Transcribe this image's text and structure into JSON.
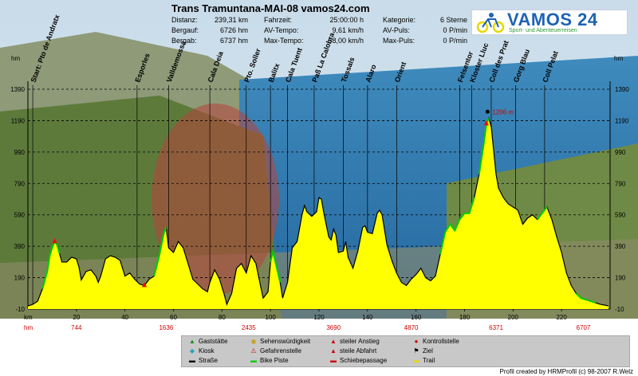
{
  "header": {
    "title": "Trans Tramuntana-MAI-08 vamos24.com",
    "stats": [
      {
        "label": "Distanz:",
        "value": "239,31 km"
      },
      {
        "label": "Bergauf:",
        "value": "6726 hm"
      },
      {
        "label": "Bergab:",
        "value": "6737 hm"
      },
      {
        "label": "Fahrzeit:",
        "value": "25:00:00 h"
      },
      {
        "label": "AV-Tempo:",
        "value": "9,61 km/h"
      },
      {
        "label": "Max-Tempo:",
        "value": "58,00 km/h"
      },
      {
        "label": "Kategorie:",
        "value": "6 Sterne"
      },
      {
        "label": "AV-Puls:",
        "value": "0 P/min"
      },
      {
        "label": "Max-Puls:",
        "value": "0 P/min"
      }
    ]
  },
  "logo": {
    "name": "VAMOS 24",
    "tagline": "Sport- und Abenteuerreisen",
    "name_color": "#1d63b6",
    "tagline_color": "#2d9a3a"
  },
  "colors": {
    "profile_fill": "#ffff00",
    "profile_outline": "#000000",
    "bike_piste": "#00cc00",
    "steep_climb": "#ff0000",
    "grid": "#000000"
  },
  "chart_data": {
    "type": "area",
    "xlabel": "km",
    "ylabel": "hm",
    "xlim": [
      0,
      240
    ],
    "ylim": [
      -10,
      1390
    ],
    "y_ticks": [
      "-10",
      "190",
      "390",
      "590",
      "790",
      "990",
      "1190",
      "1390"
    ],
    "x_ticks": [
      "20",
      "40",
      "60",
      "80",
      "100",
      "120",
      "140",
      "160",
      "180",
      "200",
      "220"
    ],
    "hm_row_label": "hm",
    "hm_row": [
      {
        "km": 20,
        "label": "744"
      },
      {
        "km": 57,
        "label": "1636"
      },
      {
        "km": 91,
        "label": "2435"
      },
      {
        "km": 126,
        "label": "3690"
      },
      {
        "km": 158,
        "label": "4870"
      },
      {
        "km": 193,
        "label": "6371"
      },
      {
        "km": 229,
        "label": "6707"
      }
    ],
    "peak": {
      "km": 189.5,
      "label": "1206 m"
    },
    "waypoints": [
      {
        "km": 2,
        "label": "Start: Pto de Andratx"
      },
      {
        "km": 45,
        "label": "Esporles"
      },
      {
        "km": 58,
        "label": "Valldemossa"
      },
      {
        "km": 75,
        "label": "Cala Deia"
      },
      {
        "km": 90,
        "label": "Pto. Soller"
      },
      {
        "km": 100,
        "label": "Balitx"
      },
      {
        "km": 107,
        "label": "Cala Tuent"
      },
      {
        "km": 118,
        "label": "Paß La Calobra"
      },
      {
        "km": 130,
        "label": "Tossals"
      },
      {
        "km": 140,
        "label": "Alaro"
      },
      {
        "km": 152,
        "label": "Orient"
      },
      {
        "km": 178,
        "label": "Felsentor"
      },
      {
        "km": 183,
        "label": "Kloster Lluc"
      },
      {
        "km": 191,
        "label": "Coll des Prat"
      },
      {
        "km": 201,
        "label": "Gorg Blau"
      },
      {
        "km": 213,
        "label": "Coll Pelat"
      }
    ],
    "profile": [
      [
        0,
        10
      ],
      [
        2,
        20
      ],
      [
        4,
        40
      ],
      [
        6,
        120
      ],
      [
        8,
        230
      ],
      [
        9,
        330
      ],
      [
        10,
        380
      ],
      [
        11,
        420
      ],
      [
        12,
        400
      ],
      [
        13,
        345
      ],
      [
        14,
        290
      ],
      [
        16,
        290
      ],
      [
        18,
        320
      ],
      [
        20,
        310
      ],
      [
        21,
        260
      ],
      [
        22,
        175
      ],
      [
        24,
        230
      ],
      [
        26,
        240
      ],
      [
        28,
        200
      ],
      [
        29,
        160
      ],
      [
        30,
        200
      ],
      [
        32,
        310
      ],
      [
        34,
        330
      ],
      [
        36,
        320
      ],
      [
        38,
        300
      ],
      [
        40,
        200
      ],
      [
        42,
        220
      ],
      [
        44,
        180
      ],
      [
        46,
        150
      ],
      [
        48,
        140
      ],
      [
        50,
        180
      ],
      [
        52,
        200
      ],
      [
        54,
        320
      ],
      [
        56,
        470
      ],
      [
        57,
        510
      ],
      [
        58,
        380
      ],
      [
        60,
        350
      ],
      [
        62,
        420
      ],
      [
        64,
        380
      ],
      [
        66,
        280
      ],
      [
        68,
        180
      ],
      [
        70,
        150
      ],
      [
        72,
        120
      ],
      [
        74,
        100
      ],
      [
        75,
        160
      ],
      [
        77,
        240
      ],
      [
        79,
        180
      ],
      [
        81,
        80
      ],
      [
        82,
        20
      ],
      [
        84,
        90
      ],
      [
        86,
        250
      ],
      [
        88,
        280
      ],
      [
        90,
        220
      ],
      [
        92,
        330
      ],
      [
        94,
        280
      ],
      [
        96,
        130
      ],
      [
        97,
        60
      ],
      [
        99,
        100
      ],
      [
        100,
        290
      ],
      [
        101,
        360
      ],
      [
        102,
        290
      ],
      [
        104,
        160
      ],
      [
        105,
        60
      ],
      [
        107,
        160
      ],
      [
        109,
        380
      ],
      [
        111,
        420
      ],
      [
        113,
        590
      ],
      [
        114,
        650
      ],
      [
        115,
        610
      ],
      [
        117,
        580
      ],
      [
        119,
        610
      ],
      [
        120,
        700
      ],
      [
        121,
        690
      ],
      [
        122,
        600
      ],
      [
        124,
        450
      ],
      [
        125,
        430
      ],
      [
        126,
        500
      ],
      [
        127,
        460
      ],
      [
        128,
        350
      ],
      [
        130,
        360
      ],
      [
        131,
        420
      ],
      [
        132,
        320
      ],
      [
        134,
        250
      ],
      [
        136,
        360
      ],
      [
        138,
        510
      ],
      [
        139,
        520
      ],
      [
        140,
        480
      ],
      [
        142,
        470
      ],
      [
        144,
        600
      ],
      [
        145,
        620
      ],
      [
        146,
        590
      ],
      [
        148,
        400
      ],
      [
        150,
        300
      ],
      [
        152,
        220
      ],
      [
        154,
        160
      ],
      [
        156,
        140
      ],
      [
        158,
        180
      ],
      [
        160,
        210
      ],
      [
        162,
        250
      ],
      [
        164,
        190
      ],
      [
        166,
        170
      ],
      [
        168,
        200
      ],
      [
        170,
        340
      ],
      [
        172,
        480
      ],
      [
        174,
        530
      ],
      [
        176,
        490
      ],
      [
        178,
        560
      ],
      [
        180,
        600
      ],
      [
        182,
        600
      ],
      [
        184,
        700
      ],
      [
        186,
        850
      ],
      [
        188,
        1050
      ],
      [
        189,
        1170
      ],
      [
        190,
        1206
      ],
      [
        191,
        1150
      ],
      [
        192,
        1000
      ],
      [
        193,
        850
      ],
      [
        194,
        760
      ],
      [
        196,
        700
      ],
      [
        198,
        660
      ],
      [
        200,
        640
      ],
      [
        202,
        620
      ],
      [
        204,
        530
      ],
      [
        206,
        570
      ],
      [
        208,
        590
      ],
      [
        210,
        560
      ],
      [
        212,
        600
      ],
      [
        214,
        640
      ],
      [
        216,
        560
      ],
      [
        218,
        450
      ],
      [
        220,
        350
      ],
      [
        222,
        220
      ],
      [
        224,
        140
      ],
      [
        226,
        90
      ],
      [
        228,
        60
      ],
      [
        230,
        50
      ],
      [
        232,
        40
      ],
      [
        234,
        30
      ],
      [
        236,
        20
      ],
      [
        238,
        15
      ],
      [
        239.3,
        10
      ]
    ]
  },
  "legend": {
    "items": [
      {
        "icon": "house-icon",
        "label": "Gaststätte",
        "color": "#1a8c1a",
        "glyph": "▲"
      },
      {
        "icon": "kiosk-icon",
        "label": "Kiosk",
        "color": "#2aa3b8",
        "glyph": "◆"
      },
      {
        "icon": "road-icon",
        "label": "Straße",
        "color": "#000000",
        "glyph": "▬"
      },
      {
        "icon": "sight-icon",
        "label": "Sehenswürdigkeit",
        "color": "#c8a000",
        "glyph": "◉"
      },
      {
        "icon": "danger-icon",
        "label": "Gefahrenstelle",
        "color": "#d00000",
        "glyph": "⚠"
      },
      {
        "icon": "bike-piste-icon",
        "label": "Bike Piste",
        "color": "#00cc00",
        "glyph": "▬"
      },
      {
        "icon": "steep-climb-icon",
        "label": "steiler Anstieg",
        "color": "#d00000",
        "glyph": "▲"
      },
      {
        "icon": "steep-descent-icon",
        "label": "steile Abfahrt",
        "color": "#d00000",
        "glyph": "▲"
      },
      {
        "icon": "push-icon",
        "label": "Schiebepassage",
        "color": "#cc0000",
        "glyph": "▬"
      },
      {
        "icon": "checkpoint-icon",
        "label": "Kontrollstelle",
        "color": "#d00000",
        "glyph": "●"
      },
      {
        "icon": "finish-flag-icon",
        "label": "Ziel",
        "color": "#000000",
        "glyph": "⚑"
      },
      {
        "icon": "trail-icon",
        "label": "Trail",
        "color": "#e8d800",
        "glyph": "▬"
      }
    ]
  },
  "credit": "Profil created by HRMProfil (c) 98-2007 R.Welz"
}
